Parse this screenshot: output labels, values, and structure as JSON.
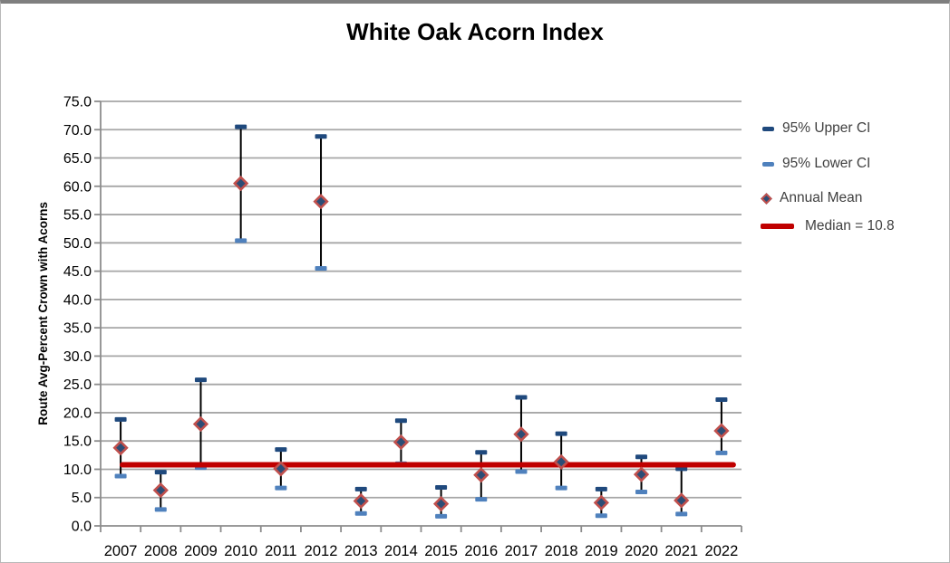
{
  "title": "White Oak Acorn Index",
  "y_axis": {
    "title": "Route Avg-Percent Crown with Acorns"
  },
  "legend": {
    "items": [
      {
        "label": "95% Upper CI"
      },
      {
        "label": "95% Lower CI"
      },
      {
        "label": "Annual Mean"
      },
      {
        "label": "Median = 10.8"
      }
    ]
  },
  "chart_data": {
    "type": "scatter",
    "title": "White Oak Acorn Index",
    "ylabel": "Route Avg-Percent Crown with Acorns",
    "xlabel": "",
    "categories": [
      "2007",
      "2008",
      "2009",
      "2010",
      "2011",
      "2012",
      "2013",
      "2014",
      "2015",
      "2016",
      "2017",
      "2018",
      "2019",
      "2020",
      "2021",
      "2022"
    ],
    "series": [
      {
        "name": "95% Upper CI",
        "values": [
          18.8,
          9.5,
          25.8,
          70.5,
          13.5,
          68.8,
          6.5,
          18.6,
          6.8,
          13.0,
          22.7,
          16.3,
          6.5,
          12.2,
          10.1,
          22.3
        ]
      },
      {
        "name": "95% Lower CI",
        "values": [
          8.8,
          2.9,
          10.3,
          50.4,
          6.7,
          45.5,
          2.2,
          11.0,
          1.7,
          4.7,
          9.6,
          6.7,
          1.8,
          6.0,
          2.1,
          12.9
        ]
      },
      {
        "name": "Annual Mean",
        "values": [
          13.8,
          6.3,
          18.0,
          60.5,
          10.1,
          57.3,
          4.4,
          14.8,
          3.9,
          9.0,
          16.2,
          11.3,
          4.1,
          9.1,
          4.5,
          16.8
        ]
      }
    ],
    "median": 10.8,
    "ylim": [
      0,
      75
    ],
    "ytick_step": 5,
    "grid": true,
    "legend_position": "right"
  },
  "colors": {
    "upper_ci": "#1F497D",
    "lower_ci": "#4F81BD",
    "mean_fill": "#2C4D76",
    "mean_border": "#C0504D",
    "median": "#C00000",
    "gridline": "#A6A6A6",
    "axis": "#8C8C8C",
    "error_line": "#000000",
    "text": "#000000",
    "legend_text": "#3F3F3F"
  }
}
